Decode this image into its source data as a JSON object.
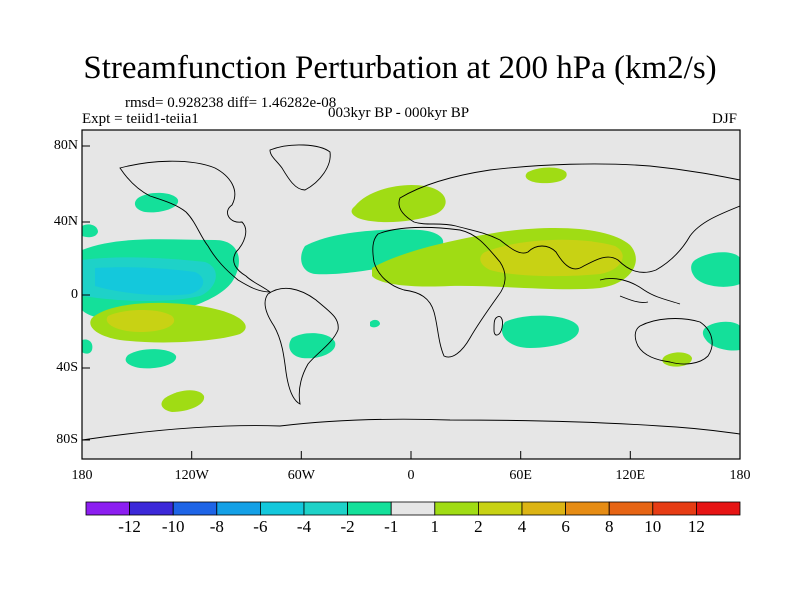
{
  "title": "Streamfunction Perturbation at 200 hPa (km2/s)",
  "stats": "rmsd= 0.928238 diff= 1.46282e-08",
  "experiment": "Expt = teiid1-teiia1",
  "period": "003kyr BP - 000kyr BP",
  "season": "DJF",
  "lat_ticks": [
    "80N",
    "40N",
    "0",
    "40S",
    "80S"
  ],
  "lon_ticks": [
    "180",
    "120W",
    "60W",
    "0",
    "60E",
    "120E",
    "180"
  ],
  "colorbar": {
    "labels": [
      "-12",
      "-10",
      "-8",
      "-6",
      "-4",
      "-2",
      "-1",
      "1",
      "2",
      "4",
      "6",
      "8",
      "10",
      "12"
    ],
    "colors": [
      "#8c1ef0",
      "#3c28d8",
      "#1e64e6",
      "#14a0e6",
      "#14c8dc",
      "#1ed2c8",
      "#14e09a",
      "#e6e6e6",
      "#a0dc14",
      "#c8d214",
      "#dcb414",
      "#e68c14",
      "#e66414",
      "#e63c14",
      "#e61414"
    ]
  },
  "colors": {
    "background": "#e6e6e6",
    "coast": "#000000"
  }
}
